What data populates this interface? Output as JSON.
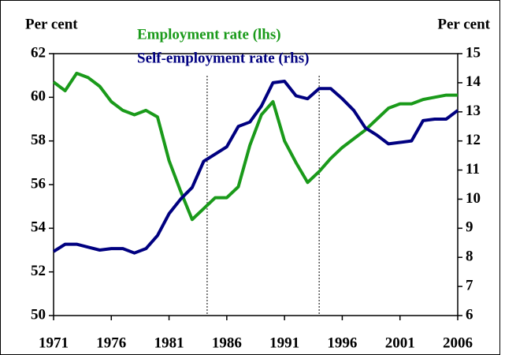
{
  "chart_data": {
    "type": "line",
    "y_label": "Per cent",
    "y2_label": "Per cent",
    "x": [
      1971,
      1972,
      1973,
      1974,
      1975,
      1976,
      1977,
      1978,
      1979,
      1980,
      1981,
      1982,
      1983,
      1984,
      1985,
      1986,
      1987,
      1988,
      1989,
      1990,
      1991,
      1992,
      1993,
      1994,
      1995,
      1996,
      1997,
      1998,
      1999,
      2000,
      2001,
      2002,
      2003,
      2004,
      2005,
      2006
    ],
    "xlim": [
      1971,
      2006
    ],
    "xticks": [
      1971,
      1976,
      1981,
      1986,
      1991,
      1996,
      2001,
      2006
    ],
    "ylim": [
      50,
      62
    ],
    "yticks": [
      50,
      52,
      54,
      56,
      58,
      60,
      62
    ],
    "y2lim": [
      6,
      15
    ],
    "y2ticks": [
      6,
      7,
      8,
      9,
      10,
      11,
      12,
      13,
      14,
      15
    ],
    "vlines": [
      1984.3,
      1994
    ],
    "series": [
      {
        "name": "Employment rate (lhs)",
        "color": "#1a9a1a",
        "values": [
          60.7,
          60.3,
          61.1,
          60.9,
          60.5,
          59.8,
          59.4,
          59.2,
          59.4,
          59.1,
          57.1,
          55.7,
          54.4,
          54.9,
          55.4,
          55.4,
          55.9,
          57.8,
          59.2,
          59.8,
          58.0,
          57.0,
          56.1,
          56.6,
          57.2,
          57.7,
          58.1,
          58.5,
          59.0,
          59.5,
          59.7,
          59.7,
          59.9,
          60.0,
          60.1,
          60.1
        ]
      },
      {
        "name": "Self-employment rate (rhs)",
        "color": "#000080",
        "axis": "y2",
        "values": [
          8.2,
          8.45,
          8.45,
          8.35,
          8.25,
          8.3,
          8.3,
          8.15,
          8.3,
          8.75,
          9.5,
          10.0,
          10.4,
          11.3,
          11.55,
          11.8,
          12.5,
          12.65,
          13.2,
          14.0,
          14.05,
          13.55,
          13.45,
          13.8,
          13.8,
          13.45,
          13.05,
          12.45,
          12.2,
          11.9,
          11.95,
          12.0,
          12.7,
          12.75,
          12.75,
          13.05
        ]
      }
    ]
  }
}
